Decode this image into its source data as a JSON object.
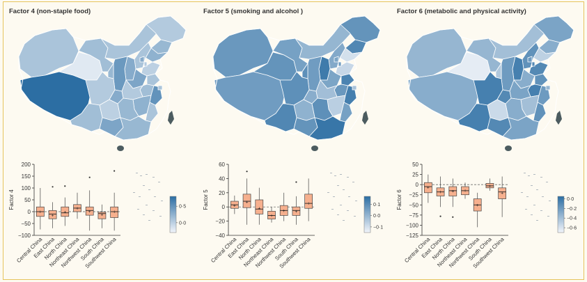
{
  "categories": [
    "Central China",
    "East China",
    "North China",
    "Northeast China",
    "Northwest China",
    "South China",
    "Southwest China"
  ],
  "colors": {
    "box_fill": "#f6b08e",
    "box_stroke": "#444444",
    "map_stroke": "#ffffff",
    "legend_light": "#f2f5fa",
    "legend_dark": "#2c6ea3",
    "hainan_taiwan": "#4c5c60",
    "islands": "#b0b8bf",
    "background": "#fdfaf1",
    "border": "#e6c45c"
  },
  "panels": [
    {
      "title": "Factor 4 (non-staple food)",
      "map_icon": "china-choropleth-map",
      "chart_data": {
        "type": "box",
        "title": "Factor 4 (non-staple food)",
        "ylabel": "Factor 4",
        "ylim": [
          -100,
          200
        ],
        "yticks": [
          -100,
          -50,
          0,
          50,
          100,
          150,
          200
        ],
        "reference_line": 0,
        "categories": [
          "Central China",
          "East China",
          "North China",
          "Northeast China",
          "Northwest China",
          "South China",
          "Southwest China"
        ],
        "boxes": [
          {
            "min": -75,
            "q1": -20,
            "median": 0,
            "q3": 20,
            "max": 100,
            "mean": 0,
            "outliers": []
          },
          {
            "min": -70,
            "q1": -30,
            "median": -10,
            "q3": 5,
            "max": 40,
            "mean": -15,
            "outliers": [
              105
            ]
          },
          {
            "min": -60,
            "q1": -20,
            "median": -5,
            "q3": 20,
            "max": 60,
            "mean": -2,
            "outliers": [
              108
            ]
          },
          {
            "min": -30,
            "q1": 0,
            "median": 15,
            "q3": 30,
            "max": 80,
            "mean": 15,
            "outliers": []
          },
          {
            "min": -80,
            "q1": -15,
            "median": 5,
            "q3": 20,
            "max": 90,
            "mean": 2,
            "outliers": [
              145
            ]
          },
          {
            "min": -70,
            "q1": -30,
            "median": -8,
            "q3": -2,
            "max": 30,
            "mean": -12,
            "outliers": []
          },
          {
            "min": -80,
            "q1": -25,
            "median": 0,
            "q3": 20,
            "max": 80,
            "mean": 0,
            "outliers": [
              172
            ]
          }
        ],
        "legend": {
          "ticks": [
            0.5,
            0.0
          ],
          "labels": [
            "0·5",
            "0·0"
          ],
          "range": [
            -0.3,
            0.8
          ]
        },
        "region_values": [
          0.35,
          0.0,
          0.4,
          0.15,
          0.1,
          0.05,
          0.2,
          0.25,
          0.1,
          0.3,
          0.45,
          0.2,
          0.0,
          0.35,
          0.1,
          0.15,
          0.05,
          0.4,
          0.3,
          0.5,
          0.25,
          0.2,
          0.1,
          0.0,
          0.15,
          0.35,
          0.2,
          0.3,
          0.1,
          0.05,
          0.3
        ],
        "region_special": {
          "tibet": 0.85,
          "qinghai": -0.2,
          "sichuan": 0.05,
          "xinjiang": 0.1
        }
      }
    },
    {
      "title": "Factor 5 (smoking and alcohol )",
      "map_icon": "china-choropleth-map",
      "chart_data": {
        "type": "box",
        "title": "Factor 5 (smoking and alcohol )",
        "ylabel": "Factor 5",
        "ylim": [
          -40,
          60
        ],
        "yticks": [
          -40,
          -20,
          0,
          20,
          40,
          60
        ],
        "reference_line": 0,
        "categories": [
          "Central China",
          "East China",
          "North China",
          "Northeast China",
          "Northwest China",
          "South China",
          "Southwest China"
        ],
        "boxes": [
          {
            "min": -10,
            "q1": -2,
            "median": 3,
            "q3": 8,
            "max": 16,
            "mean": 2,
            "outliers": []
          },
          {
            "min": -25,
            "q1": -1,
            "median": 8,
            "q3": 18,
            "max": 40,
            "mean": 7,
            "outliers": [
              50
            ]
          },
          {
            "min": -25,
            "q1": -10,
            "median": -3,
            "q3": 10,
            "max": 27,
            "mean": -2,
            "outliers": []
          },
          {
            "min": -22,
            "q1": -17,
            "median": -12,
            "q3": -6,
            "max": 0,
            "mean": -12,
            "outliers": []
          },
          {
            "min": -20,
            "q1": -12,
            "median": -5,
            "q3": 2,
            "max": 20,
            "mean": -5,
            "outliers": []
          },
          {
            "min": -25,
            "q1": -12,
            "median": -5,
            "q3": 0,
            "max": 15,
            "mean": -6,
            "outliers": [
              35
            ]
          },
          {
            "min": -20,
            "q1": -2,
            "median": 5,
            "q3": 18,
            "max": 40,
            "mean": 5,
            "outliers": []
          }
        ],
        "legend": {
          "ticks": [
            0.1,
            0.0,
            -0.1
          ],
          "labels": [
            "0·1",
            "0·0",
            "−0·1"
          ],
          "range": [
            -0.15,
            0.17
          ]
        },
        "region_values": [
          0.1,
          -0.05,
          0.12,
          0.05,
          0.0,
          0.08,
          0.11,
          -0.1,
          0.03,
          0.14,
          0.06,
          0.09,
          -0.08,
          0.04,
          0.12,
          0.07,
          -0.02,
          0.1,
          0.02,
          0.13,
          -0.06,
          0.09,
          0.05,
          0.01,
          0.11,
          0.08,
          0.15,
          0.04,
          -0.03,
          0.06,
          0.1
        ],
        "region_special": {
          "tibet": 0.06,
          "qinghai": 0.08,
          "sichuan": 0.09,
          "xinjiang": 0.07
        }
      }
    },
    {
      "title": "Factor 6 (metabolic and physical activity)",
      "map_icon": "china-choropleth-map",
      "chart_data": {
        "type": "box",
        "title": "Factor 6 (metabolic and physical activity)",
        "ylabel": "Factor 6",
        "ylim": [
          -125,
          50
        ],
        "yticks": [
          -125,
          -100,
          -75,
          -50,
          -25,
          0,
          25,
          50
        ],
        "reference_line": 0,
        "categories": [
          "Central China",
          "East China",
          "North China",
          "Northeast China",
          "Northwest China",
          "South China",
          "Southwest China"
        ],
        "boxes": [
          {
            "min": -45,
            "q1": -20,
            "median": -5,
            "q3": 5,
            "max": 25,
            "mean": -7,
            "outliers": []
          },
          {
            "min": -55,
            "q1": -28,
            "median": -18,
            "q3": -8,
            "max": 20,
            "mean": -18,
            "outliers": [
              -78
            ]
          },
          {
            "min": -55,
            "q1": -28,
            "median": -15,
            "q3": -5,
            "max": 15,
            "mean": -16,
            "outliers": [
              -80
            ]
          },
          {
            "min": -35,
            "q1": -25,
            "median": -15,
            "q3": -5,
            "max": 5,
            "mean": -14,
            "outliers": []
          },
          {
            "min": -105,
            "q1": -65,
            "median": -50,
            "q3": -35,
            "max": -20,
            "mean": -50,
            "outliers": []
          },
          {
            "min": -15,
            "q1": -8,
            "median": -3,
            "q3": 3,
            "max": 15,
            "mean": -3,
            "outliers": []
          },
          {
            "min": -80,
            "q1": -35,
            "median": -18,
            "q3": -8,
            "max": 20,
            "mean": -20,
            "outliers": []
          }
        ],
        "legend": {
          "ticks": [
            0.0,
            -0.2,
            -0.4,
            -0.6
          ],
          "labels": [
            "0·0",
            "−0·2",
            "−0·4",
            "−0·6"
          ],
          "range": [
            -0.7,
            0.05
          ]
        },
        "region_values": [
          -0.2,
          -0.55,
          -0.1,
          -0.35,
          -0.4,
          -0.25,
          -0.3,
          -0.5,
          -0.15,
          -0.05,
          -0.2,
          -0.45,
          -0.1,
          -0.3,
          -0.15,
          -0.05,
          -0.25,
          -0.35,
          -0.1,
          -0.2,
          -0.4,
          -0.3,
          -0.15,
          -0.55,
          -0.05,
          -0.1,
          -0.25,
          -0.2,
          -0.35,
          -0.1,
          -0.15
        ],
        "region_special": {
          "tibet": -0.3,
          "qinghai": -0.65,
          "sichuan": -0.05,
          "xinjiang": -0.35
        }
      }
    }
  ]
}
